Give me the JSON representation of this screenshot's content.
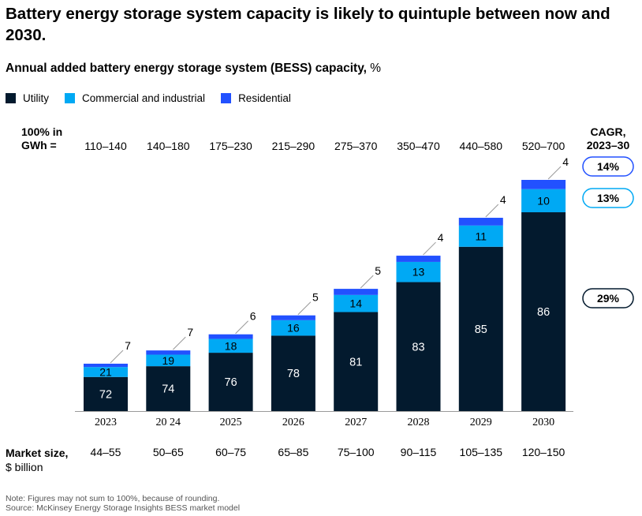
{
  "header": {
    "title": "Battery energy storage system capacity is likely to quintuple between now and 2030.",
    "subtitle_bold": "Annual added battery energy storage system (BESS) capacity,",
    "subtitle_unit": " %"
  },
  "left_labels": {
    "gwh_line1": "100% in",
    "gwh_line2": "GWh =",
    "market_line1": "Market size,",
    "market_line2": "$ billion"
  },
  "cagr": {
    "line1": "CAGR,",
    "line2": "2023–30"
  },
  "footnote": {
    "note": "Note: Figures may not sum to 100%, because of rounding.",
    "source": "Source: McKinsey Energy Storage Insights BESS market model"
  },
  "colors": {
    "utility": "#031a2e",
    "commercial": "#00a9f4",
    "residential": "#2251ff"
  },
  "chart_data": {
    "type": "bar",
    "stacked": true,
    "categories": [
      "2023",
      "20 24",
      "2025",
      "2026",
      "2027",
      "2028",
      "2029",
      "2030"
    ],
    "series": [
      {
        "name": "Utility",
        "color_key": "utility",
        "values": [
          72,
          74,
          76,
          78,
          81,
          83,
          85,
          86
        ]
      },
      {
        "name": "Commercial and industrial",
        "color_key": "commercial",
        "values": [
          21,
          19,
          18,
          16,
          14,
          13,
          11,
          10
        ]
      },
      {
        "name": "Residential",
        "color_key": "residential",
        "values": [
          7,
          7,
          6,
          5,
          5,
          4,
          4,
          4
        ]
      }
    ],
    "gwh_totals": [
      "110–140",
      "140–180",
      "175–230",
      "215–290",
      "275–370",
      "350–470",
      "440–580",
      "520–700"
    ],
    "gwh_range_low": [
      110,
      140,
      175,
      215,
      275,
      350,
      440,
      520
    ],
    "gwh_range_high": [
      140,
      180,
      230,
      290,
      370,
      470,
      580,
      700
    ],
    "market_size": [
      "44–55",
      "50–65",
      "60–75",
      "65–85",
      "75–100",
      "90–115",
      "105–135",
      "120–150"
    ],
    "cagr": [
      {
        "series": "Residential",
        "value": "14%"
      },
      {
        "series": "Commercial and industrial",
        "value": "13%"
      },
      {
        "series": "Utility",
        "value": "29%"
      }
    ]
  }
}
